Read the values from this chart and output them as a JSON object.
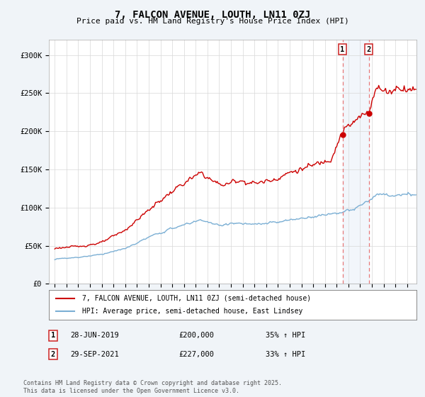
{
  "title": "7, FALCON AVENUE, LOUTH, LN11 0ZJ",
  "subtitle": "Price paid vs. HM Land Registry's House Price Index (HPI)",
  "red_label": "7, FALCON AVENUE, LOUTH, LN11 0ZJ (semi-detached house)",
  "blue_label": "HPI: Average price, semi-detached house, East Lindsey",
  "transaction1_date": "28-JUN-2019",
  "transaction1_price": "£200,000",
  "transaction1_hpi": "35% ↑ HPI",
  "transaction2_date": "29-SEP-2021",
  "transaction2_price": "£227,000",
  "transaction2_hpi": "33% ↑ HPI",
  "vline1_x": 2019.5,
  "vline2_x": 2021.75,
  "footer": "Contains HM Land Registry data © Crown copyright and database right 2025.\nThis data is licensed under the Open Government Licence v3.0.",
  "red_color": "#cc0000",
  "blue_color": "#7bafd4",
  "vline_color": "#e87878",
  "span_color": "#dce8f5",
  "background_color": "#f0f4f8",
  "plot_bg": "#ffffff",
  "ylim": [
    0,
    320000
  ],
  "xlim": [
    1994.5,
    2025.8
  ]
}
